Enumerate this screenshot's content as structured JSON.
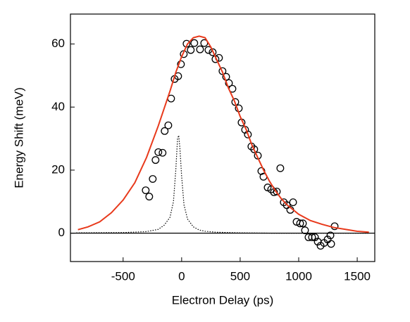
{
  "chart_data": {
    "type": "scatter",
    "xlabel": "Electron Delay (ps)",
    "ylabel": "Energy Shift (meV)",
    "xlim": [
      -950,
      1650
    ],
    "ylim": [
      -9,
      69.5
    ],
    "xticks": [
      -500,
      0,
      500,
      1000,
      1500
    ],
    "yticks": [
      0,
      20,
      40,
      60
    ],
    "zero_line": true,
    "series": [
      {
        "mode": "markers",
        "color": "#000000",
        "x": [
          -307,
          -277,
          -247,
          -223,
          -199,
          -163,
          -145,
          -114,
          -90,
          -60,
          -30,
          -6,
          18,
          42,
          78,
          108,
          157,
          193,
          229,
          265,
          289,
          319,
          349,
          380,
          404,
          434,
          458,
          488,
          512,
          542,
          566,
          596,
          620,
          651,
          681,
          699,
          735,
          765,
          789,
          813,
          843,
          873,
          898,
          928,
          952,
          982,
          1012,
          1036,
          1054,
          1084,
          1114,
          1139,
          1163,
          1187,
          1217,
          1247,
          1271,
          1277,
          1307
        ],
        "values": [
          13.6,
          11.6,
          17.2,
          23.2,
          25.7,
          25.5,
          32.4,
          34.2,
          42.7,
          48.9,
          49.8,
          53.6,
          56.8,
          60.1,
          58.1,
          60.3,
          58.3,
          60.3,
          58.1,
          57.4,
          55.2,
          55.6,
          51.4,
          49.6,
          47.6,
          45.8,
          41.6,
          39.6,
          35.1,
          32.8,
          31.3,
          27.5,
          26.6,
          24.6,
          19.7,
          17.9,
          14.5,
          13.9,
          13.0,
          13.2,
          20.6,
          9.8,
          8.9,
          7.4,
          9.8,
          3.6,
          3.1,
          3.1,
          0.9,
          -1.3,
          -1.3,
          -1.3,
          -2.7,
          -4.0,
          -3.1,
          -2.0,
          -0.7,
          -3.4,
          2.2
        ]
      },
      {
        "mode": "line",
        "color": "#e8391b",
        "dashed": false,
        "x": [
          -886,
          -800,
          -700,
          -600,
          -500,
          -400,
          -300,
          -200,
          -100,
          -50,
          0,
          50,
          100,
          150,
          200,
          250,
          300,
          350,
          400,
          450,
          500,
          550,
          600,
          650,
          700,
          750,
          800,
          850,
          900,
          950,
          1000,
          1100,
          1200,
          1300,
          1400,
          1500,
          1600
        ],
        "values": [
          1.1,
          2.0,
          3.6,
          6.5,
          10.5,
          16,
          24,
          34,
          45,
          51,
          56,
          60,
          62,
          62.5,
          62,
          59,
          55,
          51,
          46,
          42,
          37,
          33,
          28,
          24,
          20,
          16.5,
          13.5,
          11,
          9,
          7.5,
          6,
          4,
          2.8,
          1.8,
          1.2,
          0.6,
          0.3
        ]
      },
      {
        "mode": "line",
        "color": "#000000",
        "dashed": true,
        "x": [
          -900,
          -500,
          -300,
          -200,
          -150,
          -100,
          -70,
          -50,
          -35,
          -25,
          -15,
          0,
          20,
          50,
          100,
          150,
          200,
          300,
          500,
          800,
          1600
        ],
        "values": [
          0.1,
          0.2,
          0.5,
          1.2,
          2.5,
          5,
          10,
          20,
          30,
          31,
          27,
          18,
          9,
          4.5,
          2,
          1,
          0.6,
          0.3,
          0.1,
          0,
          0
        ]
      }
    ]
  }
}
